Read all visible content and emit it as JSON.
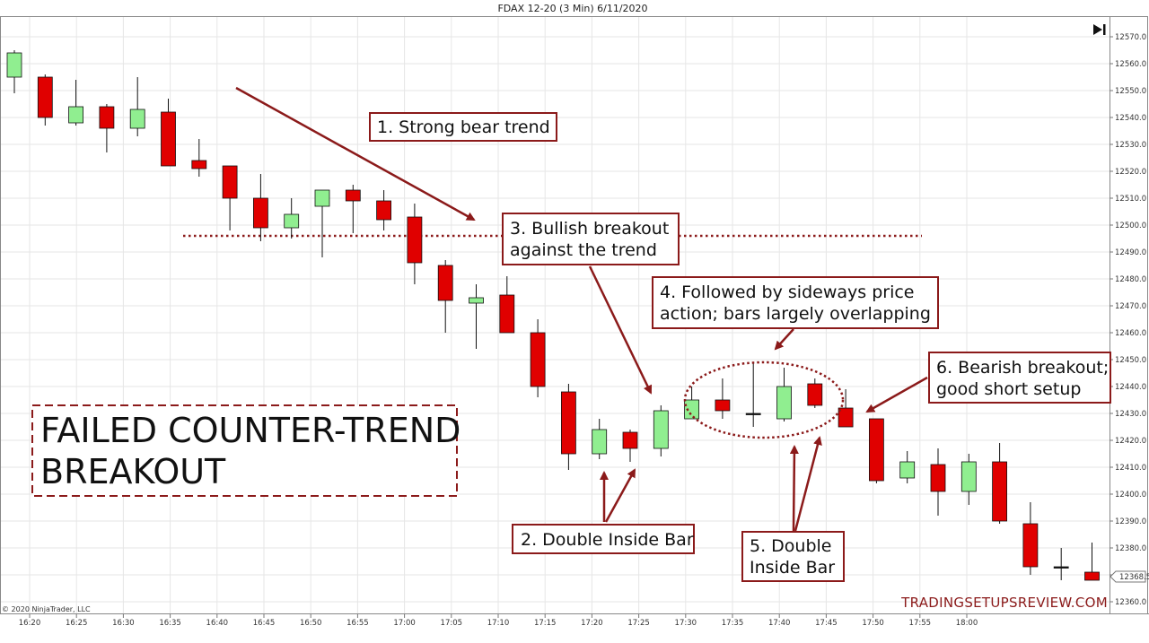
{
  "chart_data": {
    "type": "candlestick",
    "title": "FDAX 12-20 (3 Min)  6/11/2020",
    "ylim": [
      12355,
      12575
    ],
    "y_ticks": [
      "12570.0",
      "12560.0",
      "12550.0",
      "12540.0",
      "12530.0",
      "12520.0",
      "12510.0",
      "12500.0",
      "12490.0",
      "12480.0",
      "12470.0",
      "12460.0",
      "12450.0",
      "12440.0",
      "12430.0",
      "12420.0",
      "12410.0",
      "12400.0",
      "12390.0",
      "12380.0",
      "12370.0",
      "12360.0"
    ],
    "x_ticks": [
      "16:20",
      "16:25",
      "16:30",
      "16:35",
      "16:40",
      "16:45",
      "16:50",
      "16:55",
      "17:00",
      "17:05",
      "17:10",
      "17:15",
      "17:20",
      "17:25",
      "17:30",
      "17:35",
      "17:40",
      "17:45",
      "17:50",
      "17:55",
      "18:00"
    ],
    "current_price_label": "12368.5",
    "candles": [
      {
        "o": 12555,
        "h": 12565,
        "l": 12549,
        "c": 12564
      },
      {
        "o": 12555,
        "h": 12556,
        "l": 12537,
        "c": 12540
      },
      {
        "o": 12538,
        "h": 12554,
        "l": 12537,
        "c": 12544
      },
      {
        "o": 12544,
        "h": 12545,
        "l": 12527,
        "c": 12536
      },
      {
        "o": 12536,
        "h": 12555,
        "l": 12533,
        "c": 12543
      },
      {
        "o": 12542,
        "h": 12547,
        "l": 12522,
        "c": 12522
      },
      {
        "o": 12524,
        "h": 12532,
        "l": 12518,
        "c": 12521
      },
      {
        "o": 12522,
        "h": 12522,
        "l": 12498,
        "c": 12510
      },
      {
        "o": 12510,
        "h": 12519,
        "l": 12494,
        "c": 12499
      },
      {
        "o": 12499,
        "h": 12510,
        "l": 12495,
        "c": 12504
      },
      {
        "o": 12507,
        "h": 12513,
        "l": 12488,
        "c": 12513
      },
      {
        "o": 12513,
        "h": 12515,
        "l": 12497,
        "c": 12509
      },
      {
        "o": 12509,
        "h": 12513,
        "l": 12498,
        "c": 12502
      },
      {
        "o": 12503,
        "h": 12508,
        "l": 12478,
        "c": 12486
      },
      {
        "o": 12485,
        "h": 12487,
        "l": 12460,
        "c": 12472
      },
      {
        "o": 12471,
        "h": 12478,
        "l": 12454,
        "c": 12473
      },
      {
        "o": 12474,
        "h": 12481,
        "l": 12460,
        "c": 12460
      },
      {
        "o": 12460,
        "h": 12465,
        "l": 12436,
        "c": 12440
      },
      {
        "o": 12438,
        "h": 12441,
        "l": 12409,
        "c": 12415
      },
      {
        "o": 12415,
        "h": 12428,
        "l": 12413,
        "c": 12424
      },
      {
        "o": 12423,
        "h": 12424,
        "l": 12412,
        "c": 12417
      },
      {
        "o": 12417,
        "h": 12433,
        "l": 12414,
        "c": 12431
      },
      {
        "o": 12428,
        "h": 12440,
        "l": 12428,
        "c": 12435
      },
      {
        "o": 12435,
        "h": 12443,
        "l": 12428,
        "c": 12431
      },
      {
        "o": 12430,
        "h": 12449,
        "l": 12425,
        "c": 12430
      },
      {
        "o": 12428,
        "h": 12447,
        "l": 12427,
        "c": 12440
      },
      {
        "o": 12441,
        "h": 12443,
        "l": 12432,
        "c": 12433
      },
      {
        "o": 12432,
        "h": 12439,
        "l": 12425,
        "c": 12425
      },
      {
        "o": 12428,
        "h": 12428,
        "l": 12404,
        "c": 12405
      },
      {
        "o": 12406,
        "h": 12416,
        "l": 12404,
        "c": 12412
      },
      {
        "o": 12411,
        "h": 12417,
        "l": 12392,
        "c": 12401
      },
      {
        "o": 12401,
        "h": 12415,
        "l": 12396,
        "c": 12412
      },
      {
        "o": 12412,
        "h": 12419,
        "l": 12389,
        "c": 12390
      },
      {
        "o": 12389,
        "h": 12397,
        "l": 12370,
        "c": 12373
      },
      {
        "o": 12373,
        "h": 12380,
        "l": 12368,
        "c": 12373
      },
      {
        "o": 12371,
        "h": 12382,
        "l": 12368,
        "c": 12368
      }
    ],
    "support_level": 12496,
    "annotations": [
      "1. Strong bear trend",
      "2. Double Inside Bar",
      "3. Bullish breakout\nagainst the trend",
      "4. Followed by sideways price\naction; bars largely overlapping",
      "5. Double\nInside Bar",
      "6. Bearish breakout;\ngood short setup"
    ],
    "headline": "FAILED COUNTER-TREND\nBREAKOUT",
    "watermark": "TRADINGSETUPSREVIEW.COM",
    "copyright": "© 2020 NinjaTrader, LLC"
  },
  "colors": {
    "up": "#90ee90",
    "down": "#e00000",
    "annotation": "#8b1a1a",
    "grid": "#e6e6e6"
  },
  "toolbar": {
    "scroll_end_icon": "scroll-to-end-icon"
  }
}
